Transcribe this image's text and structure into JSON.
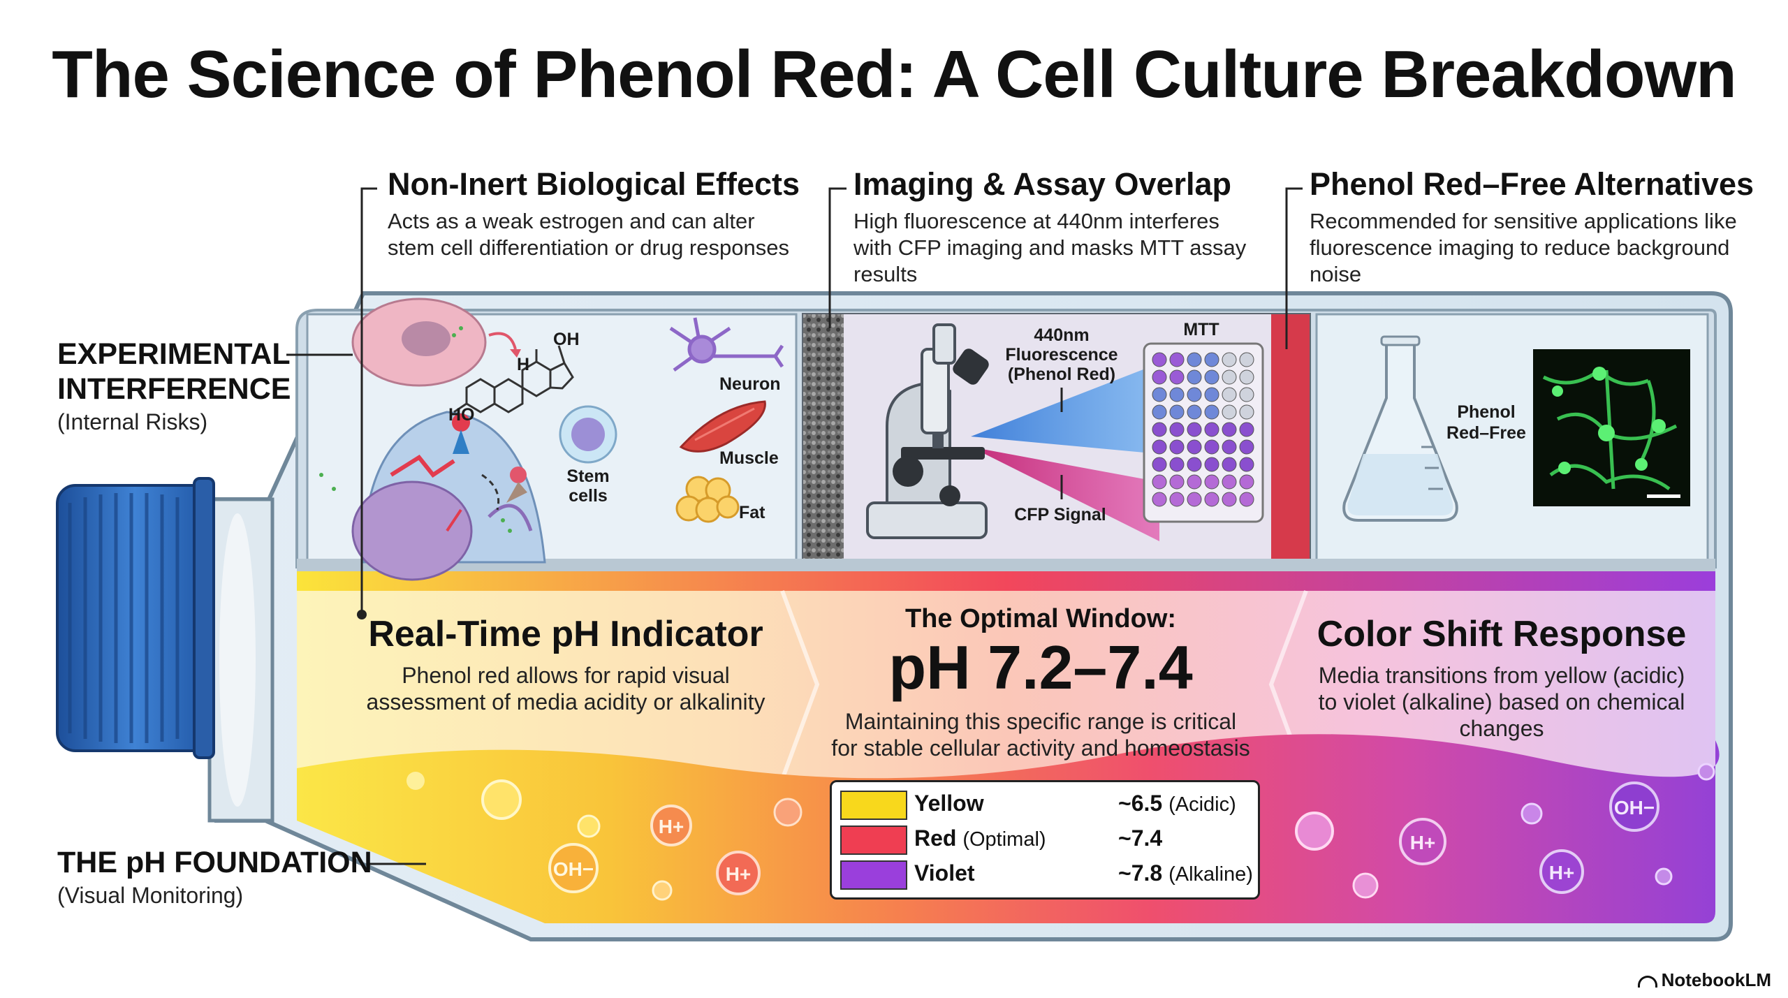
{
  "title": "The Science of Phenol Red: A Cell Culture Breakdown",
  "annotations": [
    {
      "title": "Non-Inert Biological Effects",
      "desc": "Acts as a weak estrogen and can alter stem cell differentiation or drug responses"
    },
    {
      "title": "Imaging & Assay Overlap",
      "desc": "High fluorescence at 440nm interferes with CFP imaging and masks MTT assay results"
    },
    {
      "title": "Phenol Red–Free Alternatives",
      "desc": "Recommended for sensitive applications like fluorescence imaging to reduce background noise"
    }
  ],
  "side": {
    "interference_title_1": "EXPERIMENTAL",
    "interference_title_2": "INTERFERENCE",
    "interference_sub": "(Internal Risks)",
    "foundation_title": "THE pH FOUNDATION",
    "foundation_sub": "(Visual Monitoring)"
  },
  "panel1": {
    "neuron": "Neuron",
    "muscle": "Muscle",
    "fat": "Fat",
    "stem_1": "Stem",
    "stem_2": "cells",
    "oh": "OH",
    "ho": "HO",
    "h": "H"
  },
  "panel2": {
    "fluor_1": "440nm",
    "fluor_2": "Fluorescence",
    "fluor_3": "(Phenol Red)",
    "mtt": "MTT",
    "cfp": "CFP Signal"
  },
  "panel3": {
    "label_1": "Phenol",
    "label_2": "Red–Free"
  },
  "band": {
    "left_title": "Real-Time pH Indicator",
    "left_desc_1": "Phenol red allows for rapid visual",
    "left_desc_2": "assessment of media acidity or alkalinity",
    "center_kicker": "The Optimal Window:",
    "center_value": "pH 7.2–7.4",
    "center_desc_1": "Maintaining this specific range is critical",
    "center_desc_2": "for stable cellular activity and homeostasis",
    "right_title": "Color Shift Response",
    "right_desc_1": "Media transitions from yellow (acidic)",
    "right_desc_2": "to violet (alkaline) based on chemical",
    "right_desc_3": "changes"
  },
  "ions": {
    "h": "H+",
    "oh": "OH−"
  },
  "legend": [
    {
      "name": "Yellow",
      "qualifier": "",
      "value": "~6.5",
      "note": "(Acidic)",
      "color": "#f8d81c"
    },
    {
      "name": "Red",
      "qualifier": "(Optimal)",
      "value": "~7.4",
      "note": "",
      "color": "#ef3e52"
    },
    {
      "name": "Violet",
      "qualifier": "",
      "value": "~7.8",
      "note": "(Alkaline)",
      "color": "#9a3fdc"
    }
  ],
  "brand": "NotebookLM",
  "colors": {
    "acidic": "#f8d81c",
    "optimal": "#ef3e52",
    "alkaline": "#9a3fdc",
    "cap": "#2f6fc0"
  }
}
